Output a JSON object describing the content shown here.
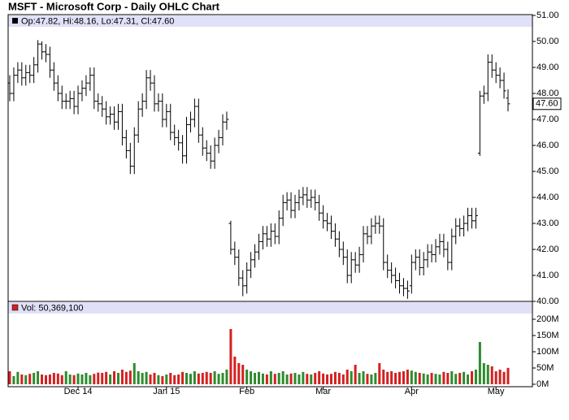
{
  "chart_data": {
    "type": "ohlc",
    "title": "MSFT - Microsoft Corp - Daily OHLC Chart",
    "legend_text": "Op:47.82, Hi:48.16, Lo:47.31, Cl:47.60",
    "last_label": "47.60",
    "color": "#000000",
    "categories": [
      null,
      null,
      null,
      null,
      null,
      null,
      null,
      null,
      null,
      null,
      null,
      null,
      null,
      null,
      null,
      null,
      null,
      "Dec 14",
      null,
      null,
      null,
      null,
      null,
      null,
      null,
      null,
      null,
      null,
      null,
      null,
      null,
      null,
      null,
      null,
      null,
      null,
      null,
      null,
      null,
      "Jan 15",
      null,
      null,
      null,
      null,
      null,
      null,
      null,
      null,
      null,
      null,
      null,
      null,
      null,
      null,
      null,
      null,
      null,
      null,
      null,
      "Feb",
      null,
      null,
      null,
      null,
      null,
      null,
      null,
      null,
      null,
      null,
      null,
      null,
      null,
      null,
      null,
      null,
      null,
      null,
      "Mar",
      null,
      null,
      null,
      null,
      null,
      null,
      null,
      null,
      null,
      null,
      null,
      null,
      null,
      null,
      null,
      null,
      null,
      null,
      null,
      null,
      null,
      "Apr",
      null,
      null,
      null,
      null,
      null,
      null,
      null,
      null,
      null,
      null,
      null,
      null,
      null,
      null,
      null,
      null,
      null,
      null,
      null,
      null,
      "May",
      null,
      null,
      null
    ],
    "open": [
      48.4,
      48.0,
      48.7,
      48.9,
      48.6,
      48.8,
      48.7,
      49.1,
      49.9,
      49.6,
      49.5,
      48.9,
      48.4,
      48.0,
      47.7,
      47.7,
      47.8,
      47.5,
      48.0,
      48.2,
      48.4,
      48.7,
      47.7,
      47.6,
      47.4,
      47.1,
      47.2,
      46.9,
      47.3,
      46.3,
      45.8,
      45.2,
      46.4,
      47.4,
      47.7,
      48.6,
      48.4,
      47.6,
      47.7,
      47.0,
      47.3,
      46.5,
      46.3,
      46.1,
      45.6,
      46.8,
      47.0,
      47.5,
      46.4,
      45.9,
      45.7,
      45.4,
      46.0,
      46.3,
      46.9,
      43.0,
      42.0,
      41.7,
      40.9,
      40.6,
      41.2,
      41.6,
      41.9,
      42.3,
      42.6,
      42.4,
      42.7,
      42.5,
      43.2,
      43.8,
      43.9,
      43.5,
      43.8,
      44.0,
      44.1,
      43.9,
      44.0,
      43.8,
      43.4,
      43.1,
      43.0,
      42.7,
      42.4,
      42.0,
      41.7,
      41.0,
      41.6,
      41.4,
      41.8,
      42.6,
      42.5,
      42.9,
      43.0,
      42.9,
      41.5,
      41.2,
      41.0,
      40.8,
      40.6,
      40.5,
      40.6,
      41.5,
      41.7,
      41.3,
      41.6,
      41.9,
      41.8,
      42.1,
      42.3,
      42.0,
      41.5,
      42.5,
      42.9,
      42.8,
      43.0,
      43.3,
      43.1,
      45.7,
      47.9,
      48.0,
      49.2,
      48.9,
      48.7,
      48.5,
      47.82
    ],
    "high": [
      48.7,
      49.0,
      49.2,
      49.2,
      49.1,
      49.1,
      49.4,
      50.05,
      50.0,
      49.9,
      49.8,
      49.2,
      48.7,
      48.3,
      48.0,
      48.1,
      48.1,
      48.3,
      48.5,
      48.7,
      49.0,
      49.0,
      48.0,
      47.9,
      47.7,
      47.5,
      47.5,
      47.6,
      47.6,
      46.6,
      46.1,
      46.7,
      47.7,
      48.0,
      48.9,
      48.9,
      48.7,
      48.0,
      48.0,
      47.6,
      47.6,
      46.8,
      46.6,
      46.4,
      47.1,
      47.3,
      47.8,
      47.8,
      46.7,
      46.2,
      46.0,
      46.3,
      46.6,
      47.2,
      47.3,
      43.1,
      42.3,
      42.0,
      41.2,
      41.5,
      41.9,
      42.2,
      42.6,
      42.9,
      42.9,
      43.0,
      43.0,
      43.5,
      44.1,
      44.2,
      44.2,
      44.1,
      44.3,
      44.4,
      44.4,
      44.3,
      44.3,
      44.1,
      43.7,
      43.4,
      43.3,
      43.0,
      42.7,
      42.3,
      42.0,
      41.9,
      41.9,
      42.1,
      42.9,
      42.9,
      43.2,
      43.3,
      43.3,
      43.2,
      41.8,
      41.5,
      41.3,
      41.1,
      40.9,
      40.8,
      41.8,
      42.0,
      42.0,
      41.9,
      42.2,
      42.2,
      42.4,
      42.6,
      42.6,
      42.3,
      42.8,
      43.2,
      43.2,
      43.3,
      43.6,
      43.6,
      43.6,
      48.1,
      48.3,
      49.5,
      49.5,
      49.2,
      49.0,
      48.8,
      48.16
    ],
    "low": [
      47.7,
      47.7,
      48.4,
      48.3,
      48.3,
      48.4,
      48.4,
      48.8,
      49.3,
      49.2,
      48.6,
      48.1,
      47.7,
      47.4,
      47.4,
      47.4,
      47.2,
      47.2,
      47.7,
      47.9,
      48.1,
      47.4,
      47.3,
      47.1,
      46.8,
      46.8,
      46.6,
      46.6,
      46.0,
      45.5,
      44.9,
      44.9,
      46.1,
      47.1,
      47.4,
      48.1,
      47.3,
      47.3,
      46.7,
      46.7,
      46.2,
      46.0,
      45.8,
      45.3,
      45.3,
      46.5,
      46.7,
      46.1,
      45.6,
      45.4,
      45.1,
      45.1,
      45.7,
      46.0,
      46.6,
      41.8,
      41.4,
      40.6,
      40.2,
      40.3,
      40.9,
      41.3,
      41.6,
      42.0,
      42.1,
      42.1,
      42.2,
      42.2,
      42.9,
      43.5,
      43.2,
      43.2,
      43.5,
      43.7,
      43.6,
      43.6,
      43.5,
      43.1,
      42.8,
      42.7,
      42.4,
      42.1,
      41.7,
      41.4,
      40.7,
      40.7,
      41.1,
      41.1,
      41.5,
      42.2,
      42.2,
      42.6,
      42.6,
      41.2,
      40.9,
      40.7,
      40.5,
      40.3,
      40.2,
      40.1,
      40.3,
      41.2,
      41.0,
      41.0,
      41.3,
      41.5,
      41.5,
      41.8,
      41.7,
      41.2,
      41.2,
      42.2,
      42.5,
      42.5,
      42.7,
      42.8,
      42.8,
      45.6,
      47.6,
      47.7,
      48.6,
      48.4,
      48.2,
      47.8,
      47.31
    ],
    "close": [
      48.0,
      48.7,
      48.9,
      48.6,
      48.8,
      48.7,
      49.1,
      49.9,
      49.6,
      49.5,
      48.9,
      48.4,
      48.0,
      47.7,
      47.7,
      47.8,
      47.5,
      48.0,
      48.2,
      48.4,
      48.7,
      47.7,
      47.6,
      47.4,
      47.1,
      47.2,
      46.9,
      47.3,
      46.3,
      45.8,
      45.2,
      46.4,
      47.4,
      47.7,
      48.6,
      48.4,
      47.6,
      47.7,
      47.0,
      47.3,
      46.5,
      46.3,
      46.1,
      45.6,
      46.8,
      47.0,
      47.5,
      46.4,
      45.9,
      45.7,
      45.4,
      46.0,
      46.3,
      46.9,
      47.0,
      42.0,
      41.7,
      40.9,
      40.6,
      41.2,
      41.6,
      41.9,
      42.3,
      42.6,
      42.4,
      42.7,
      42.5,
      43.2,
      43.8,
      43.9,
      43.5,
      43.8,
      44.0,
      44.1,
      43.9,
      44.0,
      43.8,
      43.4,
      43.1,
      43.0,
      42.7,
      42.4,
      42.0,
      41.7,
      41.0,
      41.6,
      41.4,
      41.8,
      42.6,
      42.5,
      42.9,
      43.0,
      42.9,
      41.5,
      41.2,
      41.0,
      40.8,
      40.6,
      40.5,
      40.4,
      41.5,
      41.7,
      41.3,
      41.6,
      41.9,
      41.8,
      42.1,
      42.3,
      42.0,
      41.5,
      42.5,
      42.9,
      42.8,
      43.0,
      43.3,
      43.1,
      43.3,
      47.9,
      48.0,
      49.2,
      48.9,
      48.7,
      48.5,
      48.1,
      47.6
    ],
    "ylim": [
      40,
      51
    ],
    "yticks": [
      {
        "value": 40,
        "label": "40.00"
      },
      {
        "value": 41,
        "label": "41.00"
      },
      {
        "value": 42,
        "label": "42.00"
      },
      {
        "value": 43,
        "label": "43.00"
      },
      {
        "value": 44,
        "label": "44.00"
      },
      {
        "value": 45,
        "label": "45.00"
      },
      {
        "value": 46,
        "label": "46.00"
      },
      {
        "value": 47,
        "label": "47.00"
      },
      {
        "value": 48,
        "label": "48.00"
      },
      {
        "value": 49,
        "label": "49.00"
      },
      {
        "value": 50,
        "label": "50.00"
      },
      {
        "value": 51,
        "label": "51.00"
      }
    ],
    "volume": {
      "label": "Vol: 50,369,100",
      "up_color": "#2e8b2e",
      "down_color": "#d42020",
      "values": [
        40,
        25,
        38,
        30,
        28,
        32,
        35,
        40,
        30,
        28,
        30,
        35,
        33,
        28,
        40,
        30,
        28,
        33,
        30,
        35,
        28,
        32,
        36,
        35,
        38,
        30,
        40,
        35,
        45,
        38,
        42,
        65,
        40,
        35,
        38,
        30,
        35,
        28,
        25,
        30,
        35,
        28,
        30,
        38,
        35,
        32,
        40,
        33,
        35,
        38,
        35,
        40,
        32,
        35,
        45,
        170,
        85,
        65,
        60,
        45,
        40,
        35,
        38,
        33,
        30,
        40,
        32,
        35,
        40,
        30,
        33,
        35,
        30,
        38,
        32,
        30,
        35,
        40,
        33,
        30,
        32,
        38,
        35,
        30,
        45,
        40,
        60,
        35,
        40,
        32,
        30,
        35,
        65,
        45,
        38,
        40,
        35,
        38,
        40,
        45,
        42,
        38,
        35,
        33,
        30,
        35,
        32,
        30,
        38,
        35,
        40,
        32,
        35,
        38,
        30,
        40,
        45,
        130,
        65,
        60,
        55,
        40,
        45,
        38,
        50.3691
      ],
      "ylim": [
        0,
        200
      ],
      "yticks": [
        {
          "value": 0,
          "label": "0M"
        },
        {
          "value": 50,
          "label": "50M"
        },
        {
          "value": 100,
          "label": "100M"
        },
        {
          "value": 150,
          "label": "150M"
        },
        {
          "value": 200,
          "label": "200M"
        }
      ]
    }
  }
}
